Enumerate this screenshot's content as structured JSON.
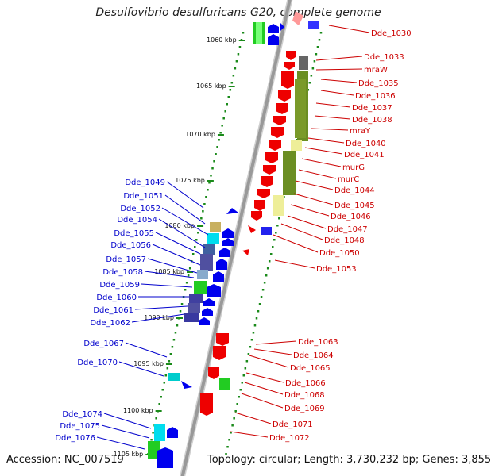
{
  "title": "Desulfovibrio desulfuricans G20, complete genome",
  "accession_label": "Accession:",
  "accession": "NC_007519",
  "topology_label": "Topology:",
  "topology": "circular",
  "length_label": "Length:",
  "length": "3,730,232 bp",
  "genes_label": "Genes:",
  "genes": "3,855",
  "colors": {
    "label_forward": "#0000cc",
    "label_reverse": "#cc0000",
    "backbone": "#999999",
    "tick": "#1a8a1a",
    "arrow_forward": "#0000ee",
    "arrow_reverse": "#ee0000"
  },
  "scale_labels": [
    "1060 kbp",
    "1065 kbp",
    "1070 kbp",
    "1075 kbp",
    "1080 kbp",
    "1085 kbp",
    "1090 kbp",
    "1095 kbp",
    "1100 kbp",
    "1105 kbp"
  ],
  "reverse_labels": [
    "Dde_1030",
    "Dde_1033",
    "mraW",
    "Dde_1035",
    "Dde_1036",
    "Dde_1037",
    "Dde_1038",
    "mraY",
    "Dde_1040",
    "Dde_1041",
    "murG",
    "murC",
    "Dde_1044",
    "Dde_1045",
    "Dde_1046",
    "Dde_1047",
    "Dde_1048",
    "Dde_1050",
    "Dde_1053",
    "Dde_1063",
    "Dde_1064",
    "Dde_1065",
    "Dde_1066",
    "Dde_1068",
    "Dde_1069",
    "Dde_1071",
    "Dde_1072"
  ],
  "forward_labels": [
    "Dde_1049",
    "Dde_1051",
    "Dde_1052",
    "Dde_1054",
    "Dde_1055",
    "Dde_1056",
    "Dde_1057",
    "Dde_1058",
    "Dde_1059",
    "Dde_1060",
    "Dde_1061",
    "Dde_1062",
    "Dde_1067",
    "Dde_1070",
    "Dde_1074",
    "Dde_1075",
    "Dde_1076"
  ]
}
